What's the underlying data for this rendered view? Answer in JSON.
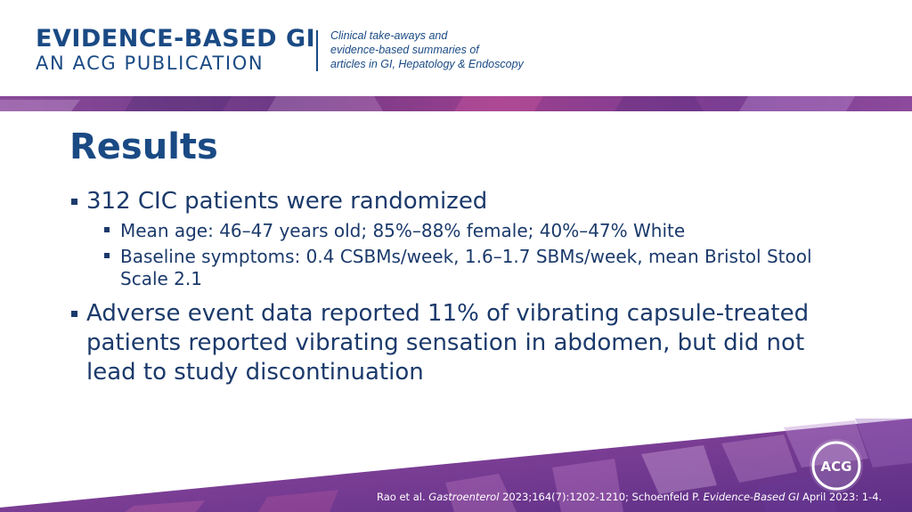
{
  "header": {
    "brand_main": "EVIDENCE-BASED GI",
    "brand_sub": "AN ACG PUBLICATION",
    "tagline_lines": [
      "Clinical take-aways and",
      "evidence-based summaries of",
      "articles in GI, Hepatology & Endoscopy"
    ]
  },
  "slide": {
    "title": "Results",
    "bullets": [
      {
        "text": "312 CIC patients were randomized",
        "sub": [
          "Mean age: 46–47 years old; 85%–88% female; 40%–47% White",
          "Baseline symptoms: 0.4 CSBMs/week, 1.6–1.7 SBMs/week, mean Bristol Stool Scale 2.1"
        ]
      },
      {
        "text": "Adverse event data reported 11% of vibrating capsule-treated patients reported vibrating sensation in abdomen, but did not lead to study discontinuation",
        "sub": []
      }
    ]
  },
  "footer": {
    "citation_part1": "Rao et al. ",
    "citation_journal1": "Gastroenterol",
    "citation_part2": " 2023;164(7):1202-1210; Schoenfeld P. ",
    "citation_journal2": "Evidence-Based GI",
    "citation_part3": " April 2023: 1-4.",
    "logo_text": "ACG"
  },
  "colors": {
    "brand_blue": "#1a4a84",
    "text_navy": "#1b3a6b",
    "band_purple": "#7a3a86",
    "band_magenta": "#a0428e"
  }
}
